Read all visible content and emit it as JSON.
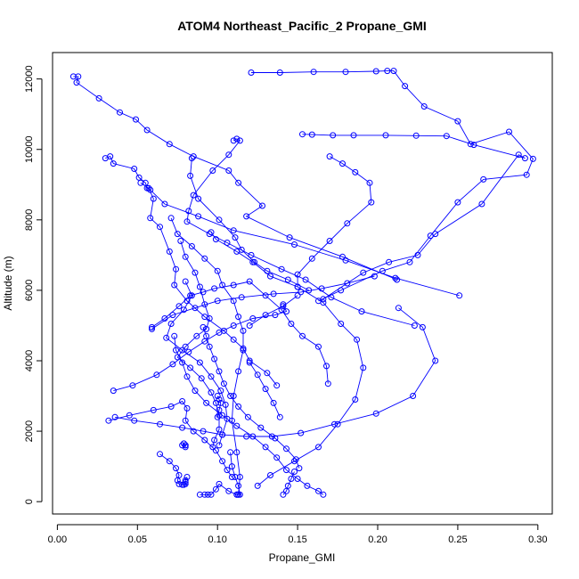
{
  "chart_data": {
    "type": "line",
    "title": "ATOM4 Northeast_Pacific_2 Propane_GMI",
    "xlabel": "Propane_GMI",
    "ylabel": "Altitude (m)",
    "xlim": [
      -0.003,
      0.309
    ],
    "ylim": [
      -350,
      12750
    ],
    "x_ticks": [
      0.0,
      0.05,
      0.1,
      0.15,
      0.2,
      0.25,
      0.3
    ],
    "x_tick_labels": [
      "0.00",
      "0.05",
      "0.10",
      "0.15",
      "0.20",
      "0.25",
      "0.30"
    ],
    "y_ticks": [
      0,
      2000,
      4000,
      6000,
      8000,
      10000,
      12000
    ],
    "y_tick_labels": [
      "0",
      "2000",
      "4000",
      "6000",
      "8000",
      "10000",
      "12000"
    ],
    "grid": false,
    "legend": "none",
    "series_color": "#0000ff",
    "marker": "open-circle",
    "series": [
      {
        "x": [
          0.01,
          0.013,
          0.012,
          0.026,
          0.039,
          0.049,
          0.056,
          0.07,
          0.085,
          0.107,
          0.113,
          0.128,
          0.118,
          0.145,
          0.178,
          0.212
        ],
        "y": [
          12070,
          12070,
          11900,
          11450,
          11050,
          10850,
          10550,
          10150,
          9800,
          9400,
          9050,
          8400,
          8100,
          7500,
          6950,
          6300
        ]
      },
      {
        "x": [
          0.11,
          0.112,
          0.114,
          0.107,
          0.097,
          0.085,
          0.082,
          0.081,
          0.095,
          0.106,
          0.121,
          0.14,
          0.155,
          0.171,
          0.19,
          0.223
        ],
        "y": [
          10250,
          10300,
          10250,
          9850,
          9400,
          8700,
          8250,
          7950,
          7600,
          7350,
          7000,
          6600,
          6300,
          5800,
          5400,
          5000
        ]
      },
      {
        "x": [
          0.03,
          0.033,
          0.035,
          0.048,
          0.051,
          0.055,
          0.056,
          0.058,
          0.067,
          0.088,
          0.11,
          0.148,
          0.18,
          0.211,
          0.251
        ],
        "y": [
          9750,
          9800,
          9600,
          9450,
          9200,
          9050,
          8900,
          8850,
          8450,
          8100,
          7700,
          7300,
          6850,
          6350,
          5850
        ]
      },
      {
        "x": [
          0.052,
          0.057,
          0.06,
          0.058,
          0.064,
          0.07,
          0.074,
          0.073,
          0.081,
          0.092,
          0.104,
          0.11,
          0.116,
          0.12,
          0.131,
          0.137
        ],
        "y": [
          9050,
          8900,
          8600,
          8050,
          7800,
          7100,
          6600,
          6150,
          5700,
          5250,
          4850,
          4600,
          4350,
          4000,
          3650,
          3300
        ]
      },
      {
        "x": [
          0.121,
          0.139,
          0.16,
          0.18,
          0.199,
          0.206,
          0.21,
          0.217,
          0.229,
          0.25,
          0.258,
          0.282,
          0.297,
          0.293,
          0.266,
          0.25,
          0.233,
          0.22,
          0.203,
          0.177,
          0.163
        ],
        "y": [
          12180,
          12180,
          12200,
          12200,
          12220,
          12230,
          12230,
          11800,
          11220,
          10800,
          10150,
          10500,
          9730,
          9280,
          9150,
          8500,
          7550,
          6800,
          6550,
          6000,
          5700
        ]
      },
      {
        "x": [
          0.153,
          0.159,
          0.172,
          0.185,
          0.205,
          0.224,
          0.243,
          0.26,
          0.292,
          0.288,
          0.265,
          0.236,
          0.225,
          0.207,
          0.191,
          0.166
        ],
        "y": [
          10430,
          10420,
          10400,
          10400,
          10400,
          10390,
          10380,
          10130,
          9750,
          9850,
          8450,
          7600,
          7000,
          6800,
          6500,
          5750
        ]
      },
      {
        "x": [
          0.084,
          0.083,
          0.088,
          0.101,
          0.111,
          0.115,
          0.123,
          0.131,
          0.144,
          0.157
        ],
        "y": [
          9750,
          9250,
          8600,
          8000,
          7500,
          7150,
          6800,
          6550,
          6300,
          6000
        ]
      },
      {
        "x": [
          0.17,
          0.178,
          0.186,
          0.195,
          0.196,
          0.181,
          0.17,
          0.159,
          0.15,
          0.15
        ],
        "y": [
          9800,
          9600,
          9350,
          9050,
          8500,
          7900,
          7400,
          6900,
          6450,
          6100
        ]
      },
      {
        "x": [
          0.096,
          0.099,
          0.112,
          0.122,
          0.133,
          0.15,
          0.166,
          0.177,
          0.187,
          0.191,
          0.186,
          0.175,
          0.163,
          0.148,
          0.133,
          0.125
        ],
        "y": [
          7650,
          7450,
          7100,
          6800,
          6400,
          6100,
          5650,
          5050,
          4600,
          3800,
          2900,
          2200,
          1550,
          1150,
          750,
          450
        ]
      },
      {
        "x": [
          0.077,
          0.08,
          0.086,
          0.089,
          0.092,
          0.095,
          0.093,
          0.087,
          0.08,
          0.075,
          0.083,
          0.09,
          0.096,
          0.099,
          0.101,
          0.101,
          0.098,
          0.097
        ],
        "y": [
          7400,
          6950,
          6500,
          6100,
          5600,
          5200,
          4900,
          4700,
          4400,
          4100,
          3800,
          3500,
          3100,
          2800,
          2450,
          2050,
          1750,
          1550
        ]
      },
      {
        "x": [
          0.071,
          0.075,
          0.084,
          0.092,
          0.1,
          0.103,
          0.11,
          0.113,
          0.116,
          0.116,
          0.113,
          0.11,
          0.109,
          0.112,
          0.114,
          0.113
        ],
        "y": [
          8050,
          7600,
          7250,
          6900,
          6550,
          6150,
          5700,
          5250,
          4850,
          4300,
          3700,
          3000,
          2300,
          1400,
          700,
          200
        ]
      },
      {
        "x": [
          0.08,
          0.084,
          0.079,
          0.071,
          0.068,
          0.078,
          0.089,
          0.096,
          0.102,
          0.105,
          0.106,
          0.103,
          0.101
        ],
        "y": [
          6250,
          5850,
          5450,
          5050,
          4650,
          4300,
          3950,
          3550,
          3150,
          2750,
          2350,
          1900,
          1600
        ]
      },
      {
        "x": [
          0.059,
          0.067,
          0.076,
          0.083,
          0.091,
          0.098,
          0.11,
          0.12,
          0.13,
          0.14,
          0.146,
          0.153,
          0.163,
          0.168,
          0.169
        ],
        "y": [
          4950,
          5200,
          5550,
          5850,
          5950,
          6050,
          6150,
          6250,
          5850,
          5450,
          5050,
          4700,
          4400,
          3850,
          3350
        ]
      },
      {
        "x": [
          0.073,
          0.074,
          0.078,
          0.081,
          0.086,
          0.093,
          0.103,
          0.112,
          0.122,
          0.13,
          0.137,
          0.143,
          0.15,
          0.156,
          0.163,
          0.166
        ],
        "y": [
          4700,
          4300,
          3950,
          3550,
          3150,
          2800,
          2450,
          2150,
          1850,
          1550,
          1250,
          900,
          650,
          450,
          300,
          200
        ]
      },
      {
        "x": [
          0.091,
          0.093,
          0.095,
          0.098,
          0.101,
          0.104,
          0.108,
          0.113,
          0.119,
          0.127,
          0.136,
          0.143,
          0.149,
          0.151
        ],
        "y": [
          4950,
          4700,
          4400,
          4050,
          3700,
          3350,
          3000,
          2700,
          2400,
          2100,
          1800,
          1500,
          1200,
          950
        ]
      },
      {
        "x": [
          0.035,
          0.047,
          0.062,
          0.072,
          0.082,
          0.092,
          0.101,
          0.11,
          0.122,
          0.136,
          0.143,
          0.141
        ],
        "y": [
          3150,
          3300,
          3600,
          3900,
          4250,
          4550,
          4800,
          5000,
          5200,
          5300,
          5400,
          5600
        ]
      },
      {
        "x": [
          0.032,
          0.045,
          0.06,
          0.071,
          0.078,
          0.081,
          0.08,
          0.085,
          0.092,
          0.099,
          0.103,
          0.106,
          0.109
        ],
        "y": [
          2300,
          2450,
          2600,
          2700,
          2850,
          2650,
          2300,
          2000,
          1750,
          1450,
          1150,
          900,
          700
        ]
      },
      {
        "x": [
          0.036,
          0.048,
          0.064,
          0.078,
          0.091,
          0.103,
          0.118,
          0.134,
          0.152,
          0.173,
          0.199,
          0.222,
          0.236,
          0.228,
          0.213
        ],
        "y": [
          2400,
          2300,
          2200,
          2100,
          2000,
          1900,
          1850,
          1850,
          1950,
          2200,
          2500,
          3000,
          4000,
          4950,
          5500
        ]
      },
      {
        "x": [
          0.064,
          0.07,
          0.074,
          0.076,
          0.075,
          0.076,
          0.078,
          0.079,
          0.08,
          0.08,
          0.08,
          0.081
        ],
        "y": [
          1350,
          1150,
          950,
          750,
          600,
          500,
          480,
          480,
          500,
          550,
          600,
          700
        ]
      },
      {
        "x": [
          0.078,
          0.079,
          0.08,
          0.08,
          0.08
        ],
        "y": [
          1600,
          1650,
          1600,
          1550,
          1600
        ]
      },
      {
        "x": [
          0.089,
          0.092,
          0.094,
          0.096,
          0.099,
          0.101,
          0.107,
          0.112
        ],
        "y": [
          200,
          200,
          200,
          200,
          350,
          500,
          300,
          200
        ]
      },
      {
        "x": [
          0.112,
          0.113,
          0.114,
          0.113,
          0.111,
          0.109,
          0.108
        ],
        "y": [
          200,
          200,
          200,
          450,
          700,
          1000,
          1400
        ]
      },
      {
        "x": [
          0.141,
          0.143,
          0.144,
          0.146,
          0.148
        ],
        "y": [
          200,
          300,
          450,
          650,
          850
        ]
      },
      {
        "x": [
          0.12,
          0.125,
          0.13,
          0.135,
          0.139
        ],
        "y": [
          3950,
          3600,
          3200,
          2800,
          2400
        ]
      },
      {
        "x": [
          0.1,
          0.101,
          0.102,
          0.101,
          0.1
        ],
        "y": [
          3000,
          2900,
          2800,
          2600,
          2400
        ]
      },
      {
        "x": [
          0.059,
          0.072,
          0.086,
          0.1,
          0.115,
          0.135,
          0.152,
          0.165,
          0.181,
          0.198
        ],
        "y": [
          4900,
          5300,
          5500,
          5700,
          5800,
          5900,
          5950,
          6050,
          6200,
          6400
        ]
      },
      {
        "x": [
          0.12,
          0.13,
          0.141,
          0.15
        ],
        "y": [
          5000,
          5300,
          5550,
          5850
        ]
      }
    ]
  }
}
